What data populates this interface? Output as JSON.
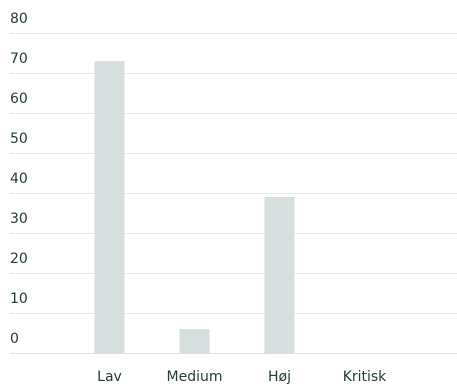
{
  "chart_data": {
    "type": "bar",
    "categories": [
      "Lav",
      "Medium",
      "Høj",
      "Kritisk"
    ],
    "values": [
      73,
      6,
      39,
      0
    ],
    "title": "",
    "xlabel": "",
    "ylabel": "",
    "ylim": [
      0,
      80
    ],
    "yticks": [
      0,
      10,
      20,
      30,
      40,
      50,
      60,
      70,
      80
    ],
    "grid": true,
    "colors": {
      "bar": "#d6dfdd",
      "grid": "#e4e8e7",
      "text": "#1f3b38"
    }
  }
}
